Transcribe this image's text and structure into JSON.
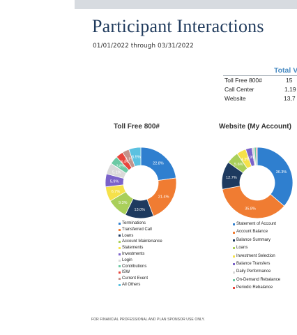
{
  "title": "Participant Interactions",
  "date_range": "01/01/2022 through 03/31/2022",
  "summary_table": {
    "header": "Total V",
    "rows": [
      {
        "label": "Toll Free 800#",
        "value": "15"
      },
      {
        "label": "Call Center",
        "value": "1,19"
      },
      {
        "label": "Website",
        "value": "13,7"
      }
    ]
  },
  "footer": "FOR FINANCIAL PROFESSIONAL AND PLAN SPONSOR USE ONLY.",
  "chart_data": [
    {
      "type": "pie",
      "title": "Toll Free 800#",
      "categories": [
        "Terminations",
        "Transferred Call",
        "Loans",
        "Account Maintenance",
        "Statements",
        "Investments",
        "Login",
        "Contributions",
        "ISW",
        "Current Event",
        "All Others"
      ],
      "values": [
        22.8,
        21.4,
        13.0,
        9.3,
        6.7,
        5.9,
        5.1,
        3.8,
        3.4,
        3.1,
        5.5
      ],
      "labels": [
        "22.8%",
        "21.4%",
        "13.0%",
        "9.3%",
        "6.7%",
        "5.9%",
        "5.1%",
        "3.8%",
        "3.4%",
        "3.1%",
        "5.5%"
      ],
      "colors": [
        "#2f7fcf",
        "#f07c32",
        "#1e3a5f",
        "#a9cf5a",
        "#f5e14a",
        "#7a62c9",
        "#d9d9d9",
        "#6cc9a3",
        "#e8453c",
        "#c4928a",
        "#5bc1e0"
      ]
    },
    {
      "type": "pie",
      "title": "Website (My Account)",
      "categories": [
        "Statement of Account",
        "Account Balance",
        "Balance Summary",
        "Loans",
        "Investment Selection",
        "Balance Transfers",
        "Daily Performance",
        "On-Demand Rebalance",
        "Periodic Rebalance"
      ],
      "values": [
        36.3,
        35.8,
        12.7,
        5.6,
        4.3,
        2.9,
        1.0,
        0.9,
        0.5
      ],
      "labels": [
        "36.3%",
        "35.8%",
        "12.7%",
        "5.6%",
        "4.3%",
        "2.9%",
        "",
        "",
        ""
      ],
      "colors": [
        "#2f7fcf",
        "#f07c32",
        "#1e3a5f",
        "#a9cf5a",
        "#f5e14a",
        "#7a62c9",
        "#d9d9d9",
        "#6cc9a3",
        "#e8453c"
      ]
    }
  ]
}
